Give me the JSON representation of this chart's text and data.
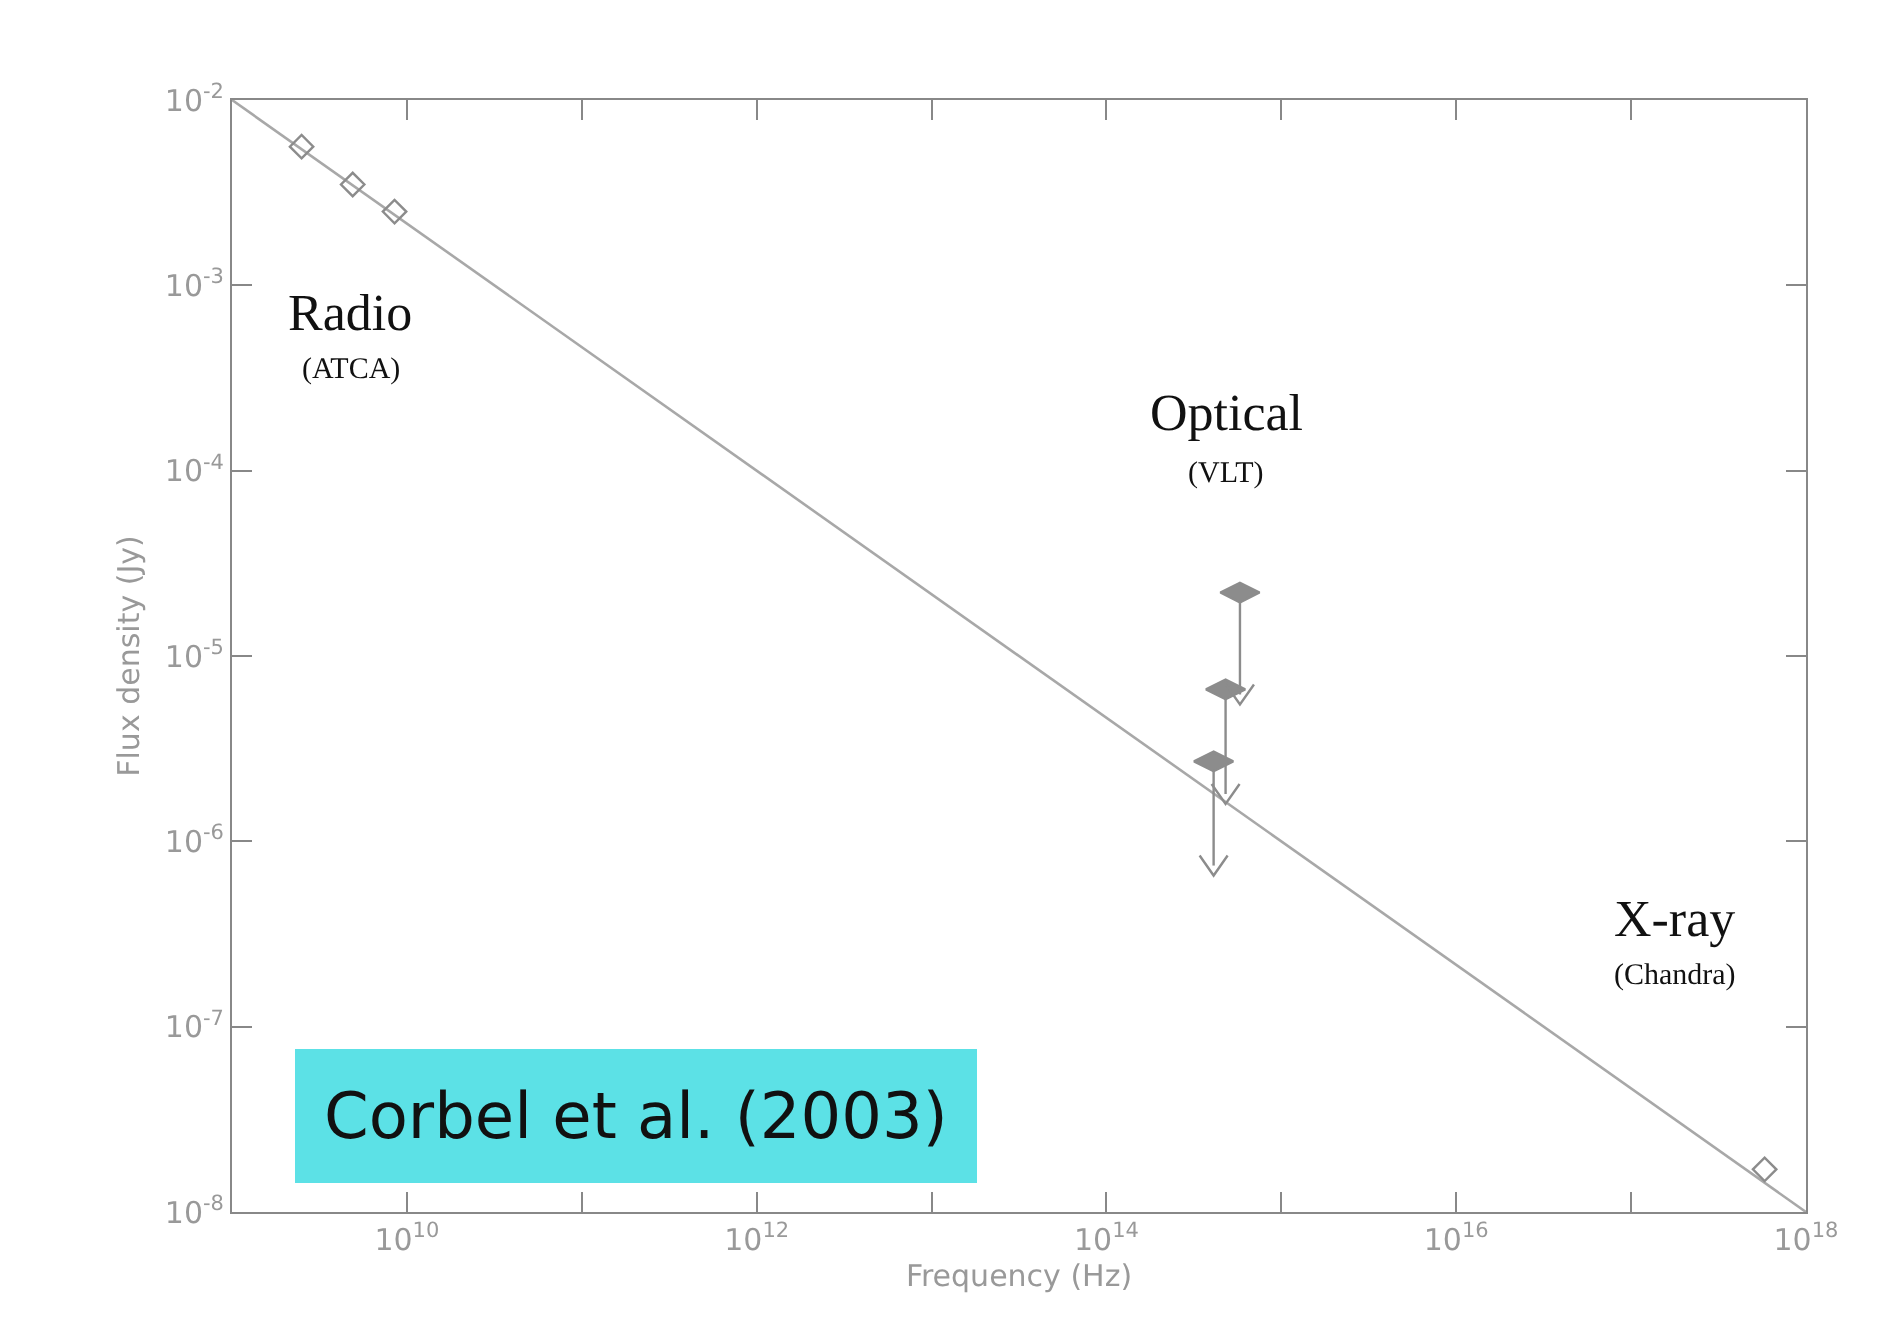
{
  "chart_data": {
    "type": "scatter",
    "xlabel": "Frequency (Hz)",
    "ylabel": "Flux density (Jy)",
    "log": "xy",
    "xlim": [
      1000000000.0,
      1e+18
    ],
    "ylim": [
      1e-08,
      0.01
    ],
    "xticks": [
      {
        "value": 1000000000.0,
        "label": null
      },
      {
        "value": 10000000000.0,
        "label": "10$^{10}$"
      },
      {
        "value": 100000000000.0,
        "label": null
      },
      {
        "value": 1000000000000.0,
        "label": "10$^{12}$"
      },
      {
        "value": 10000000000000.0,
        "label": null
      },
      {
        "value": 100000000000000.0,
        "label": "10$^{14}$"
      },
      {
        "value": 1000000000000000.0,
        "label": null
      },
      {
        "value": 1e+16,
        "label": "10$^{16}$"
      },
      {
        "value": 1e+17,
        "label": null
      },
      {
        "value": 1e+18,
        "label": "10$^{18}$"
      }
    ],
    "yticks": [
      {
        "value": 1e-08,
        "label": "10$^{-8}$"
      },
      {
        "value": 1e-07,
        "label": "10$^{-7}$"
      },
      {
        "value": 1e-06,
        "label": "10$^{-6}$"
      },
      {
        "value": 1e-05,
        "label": "10$^{-5}$"
      },
      {
        "value": 0.0001,
        "label": "10$^{-4}$"
      },
      {
        "value": 0.001,
        "label": "10$^{-3}$"
      },
      {
        "value": 0.01,
        "label": "10$^{-2}$"
      }
    ],
    "series": [
      {
        "type": "line",
        "color": "#a8a8a8",
        "line_style": "solid",
        "marker": "none",
        "x": [
          1000000000.0,
          1e+18
        ],
        "values": [
          0.01,
          1e-08
        ]
      },
      {
        "type": "scatter",
        "color": "#8c8c8c",
        "marker": "diamond",
        "x": [
          2500000000.0,
          4900000000.0,
          8500000000.0
        ],
        "values": [
          0.0056,
          0.0035,
          0.0025
        ]
      },
      {
        "type": "scatter",
        "color": "#8c8c8c",
        "marker": "diamond",
        "x": [
          5.8e+17
        ],
        "values": [
          1.7e-08
        ]
      },
      {
        "type": "scatter",
        "color": "#8c8c8c",
        "x": [
          580000000000000.0,
          480000000000000.0,
          410000000000000.0
        ],
        "values": [
          2.2e-05,
          6.6e-06,
          2.7e-06
        ],
        "errors": [
          [
            6.2e-06,
            2.2e-05
          ],
          [
            1.8e-06,
            6.6e-06
          ],
          [
            7.4e-07,
            2.7e-06
          ]
        ]
      }
    ],
    "annotations": [
      "Radio",
      "(ATCA)",
      "Optical",
      "(VLT)",
      "X-ray",
      "(Chandra)",
      "Corbel et al. (2003)"
    ]
  }
}
